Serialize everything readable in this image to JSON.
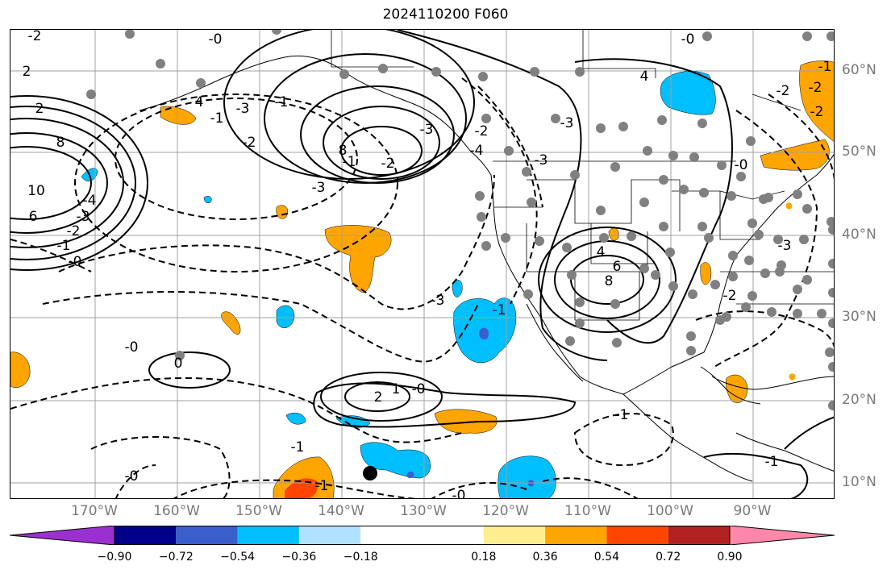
{
  "title": "2024110200 F060",
  "lat_labels": [
    "60°N",
    "50°N",
    "40°N",
    "30°N",
    "20°N",
    "10°N"
  ],
  "lon_labels": [
    "170°W",
    "160°W",
    "150°W",
    "140°W",
    "130°W",
    "120°W",
    "110°W",
    "100°W",
    "90°W"
  ],
  "contour_labels": [
    "-0",
    "-2",
    "2",
    "2",
    "8",
    "10",
    "6",
    "-4",
    "-3",
    "-2",
    "-1",
    "-0",
    "-1",
    "4",
    "-3",
    "-1",
    "-2",
    "-3",
    "-2",
    "-1",
    "8",
    "-3",
    "-2",
    "-4",
    "-3",
    "4",
    "-0",
    "-2",
    "-2",
    "-3",
    "4",
    "6",
    "8",
    "-3",
    "-0",
    "0",
    "2",
    "1",
    "-0",
    "-1",
    "-1",
    "-2",
    "-1",
    "-0",
    "-1",
    "-0",
    "-1",
    "-0",
    "-2",
    "-3",
    "-1"
  ],
  "colorbar": {
    "ticks": [
      "−0.90",
      "−0.72",
      "−0.54",
      "−0.36",
      "−0.18",
      "0.18",
      "0.36",
      "0.54",
      "0.72",
      "0.90"
    ],
    "colors": [
      "#9b30d0",
      "#00008b",
      "#3a5fcd",
      "#00bfff",
      "#b0e2ff",
      "#ffffff",
      "#ffee90",
      "#ffa500",
      "#ff4500",
      "#b22222",
      "#ff88aa"
    ]
  }
}
